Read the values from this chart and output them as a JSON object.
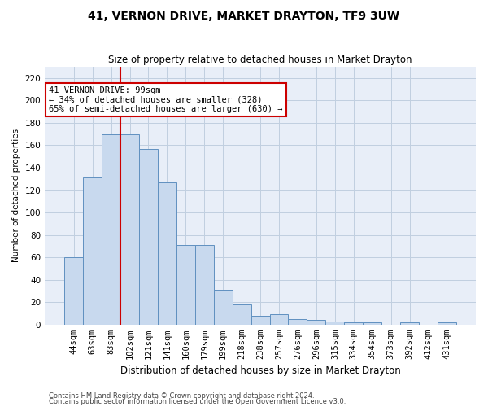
{
  "title": "41, VERNON DRIVE, MARKET DRAYTON, TF9 3UW",
  "subtitle": "Size of property relative to detached houses in Market Drayton",
  "xlabel": "Distribution of detached houses by size in Market Drayton",
  "ylabel": "Number of detached properties",
  "footer1": "Contains HM Land Registry data © Crown copyright and database right 2024.",
  "footer2": "Contains public sector information licensed under the Open Government Licence v3.0.",
  "categories": [
    "44sqm",
    "63sqm",
    "83sqm",
    "102sqm",
    "121sqm",
    "141sqm",
    "160sqm",
    "179sqm",
    "199sqm",
    "218sqm",
    "238sqm",
    "257sqm",
    "276sqm",
    "296sqm",
    "315sqm",
    "334sqm",
    "354sqm",
    "373sqm",
    "392sqm",
    "412sqm",
    "431sqm"
  ],
  "values": [
    60,
    131,
    170,
    170,
    157,
    127,
    71,
    71,
    31,
    18,
    8,
    9,
    5,
    4,
    3,
    2,
    2,
    0,
    2,
    0,
    2
  ],
  "bar_color": "#c8d9ee",
  "bar_edge_color": "#6090c0",
  "grid_color": "#c0cfe0",
  "background_color": "#e8eef8",
  "vline_x_index": 3,
  "vline_color": "#cc0000",
  "annotation_line1": "41 VERNON DRIVE: 99sqm",
  "annotation_line2": "← 34% of detached houses are smaller (328)",
  "annotation_line3": "65% of semi-detached houses are larger (630) →",
  "annotation_box_color": "white",
  "annotation_box_edge_color": "#cc0000",
  "ylim": [
    0,
    230
  ],
  "yticks": [
    0,
    20,
    40,
    60,
    80,
    100,
    120,
    140,
    160,
    180,
    200,
    220
  ],
  "title_fontsize": 10,
  "subtitle_fontsize": 8.5,
  "xlabel_fontsize": 8.5,
  "ylabel_fontsize": 7.5,
  "tick_fontsize": 7.5,
  "footer_fontsize": 6,
  "annotation_fontsize": 7.5
}
